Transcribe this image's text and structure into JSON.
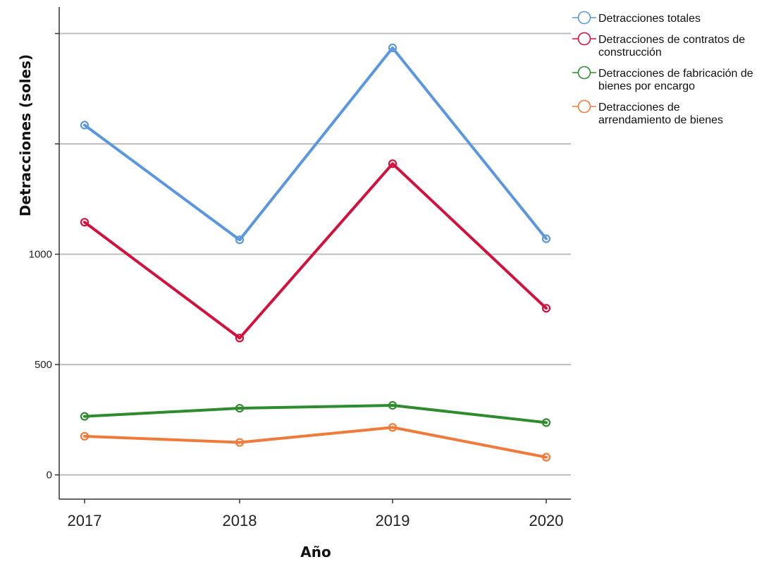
{
  "chart_data": {
    "type": "line",
    "title": "",
    "xlabel": "Año",
    "ylabel": "Detracciones (soles)",
    "categories": [
      "2017",
      "2018",
      "2019",
      "2020"
    ],
    "yticks": [
      {
        "value": 0,
        "label": "0"
      },
      {
        "value": 500,
        "label": "500"
      },
      {
        "value": 1000,
        "label": "1000"
      },
      {
        "value": 1500,
        "label": ""
      },
      {
        "value": 2000,
        "label": ""
      }
    ],
    "ylim": [
      -110,
      2120
    ],
    "grid": true,
    "legend_position": "top-right",
    "series": [
      {
        "name": "Detracciones totales",
        "name_lines": [
          "Detracciones totales"
        ],
        "color": "#5a97de",
        "values": [
          1585,
          1065,
          1935,
          1070
        ]
      },
      {
        "name": "Detracciones de contratos de construcción",
        "name_lines": [
          "Detracciones de contratos de",
          "construcción"
        ],
        "color": "#d2113d",
        "values": [
          1145,
          620,
          1410,
          755
        ]
      },
      {
        "name": "Detracciones de fabricación de bienes por encargo",
        "name_lines": [
          "Detracciones de fabricación de",
          "bienes por encargo"
        ],
        "color": "#2e8b2e",
        "values": [
          265,
          302,
          315,
          237
        ]
      },
      {
        "name": "Detracciones de arrendamiento de bienes",
        "name_lines": [
          "Detracciones de",
          "arrendamiento de bienes"
        ],
        "color": "#f07a3a",
        "values": [
          175,
          147,
          215,
          80
        ]
      }
    ]
  }
}
